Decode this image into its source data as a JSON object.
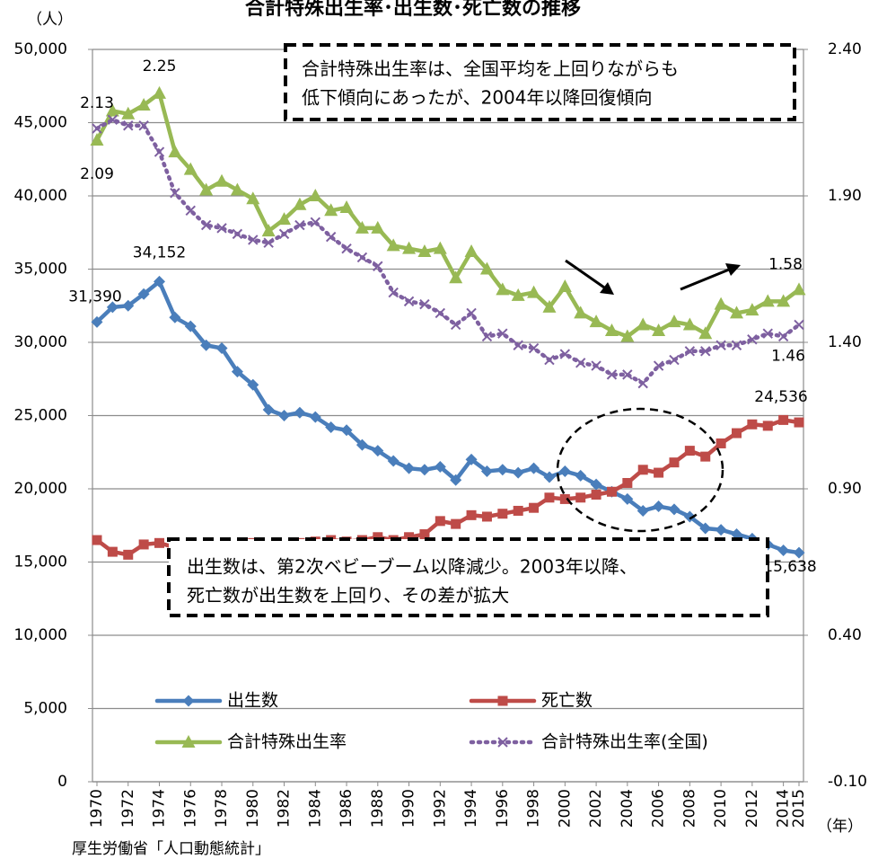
{
  "chart_data": {
    "type": "line",
    "title": "合計特殊出生率･出生数･死亡数の推移",
    "y_axis_label": "（人）",
    "x_axis_label": "（年）",
    "source": "厚生労働省「人口動態統計」",
    "x": [
      1970,
      1971,
      1972,
      1973,
      1974,
      1975,
      1976,
      1977,
      1978,
      1979,
      1980,
      1981,
      1982,
      1983,
      1984,
      1985,
      1986,
      1987,
      1988,
      1989,
      1990,
      1991,
      1992,
      1993,
      1994,
      1995,
      1996,
      1997,
      1998,
      1999,
      2000,
      2001,
      2002,
      2003,
      2004,
      2005,
      2006,
      2007,
      2008,
      2009,
      2010,
      2011,
      2012,
      2013,
      2014,
      2015
    ],
    "xlim": [
      1970,
      2015
    ],
    "xticks": [
      1970,
      1972,
      1974,
      1976,
      1978,
      1980,
      1982,
      1984,
      1986,
      1988,
      1990,
      1992,
      1994,
      1996,
      1998,
      2000,
      2002,
      2004,
      2006,
      2008,
      2010,
      2012,
      2014,
      2015
    ],
    "ylim": [
      0,
      50000
    ],
    "yticks": [
      0,
      {
        "value": 5000,
        "label": "5,000"
      },
      {
        "value": 10000,
        "label": "10,000"
      },
      {
        "value": 15000,
        "label": "15,000"
      },
      {
        "value": 20000,
        "label": "20,000"
      },
      {
        "value": 25000,
        "label": "25,000"
      },
      {
        "value": 30000,
        "label": "30,000"
      },
      {
        "value": 35000,
        "label": "35,000"
      },
      {
        "value": 40000,
        "label": "40,000"
      },
      {
        "value": 45000,
        "label": "45,000"
      },
      {
        "value": 50000,
        "label": "50,000"
      }
    ],
    "y2lim": [
      -0.1,
      2.4
    ],
    "y2ticks": [
      {
        "value": -0.1,
        "label": "-0.10"
      },
      {
        "value": 0.4,
        "label": "0.40"
      },
      {
        "value": 0.9,
        "label": "0.90"
      },
      {
        "value": 1.4,
        "label": "1.40"
      },
      {
        "value": 1.9,
        "label": "1.90"
      },
      {
        "value": 2.4,
        "label": "2.40"
      }
    ],
    "grid": true,
    "series": [
      {
        "name": "出生数",
        "color": "#4a7ebb",
        "marker": "diamond",
        "values": [
          31390,
          32400,
          32500,
          33300,
          34152,
          31700,
          31100,
          29800,
          29600,
          28000,
          27100,
          25400,
          25000,
          25200,
          24900,
          24200,
          24000,
          23000,
          22600,
          21900,
          21400,
          21300,
          21500,
          20600,
          22000,
          21200,
          21300,
          21100,
          21400,
          20800,
          21200,
          20900,
          20300,
          19800,
          19300,
          18500,
          18800,
          18600,
          18100,
          17300,
          17200,
          16900,
          16600,
          16200,
          15800,
          15638
        ],
        "value_labels": [
          "31,390",
          null,
          null,
          null,
          "34,152",
          null,
          null,
          null,
          null,
          null,
          null,
          null,
          null,
          null,
          null,
          null,
          null,
          null,
          null,
          null,
          null,
          null,
          null,
          null,
          null,
          null,
          null,
          null,
          null,
          null,
          null,
          null,
          null,
          null,
          null,
          null,
          null,
          null,
          null,
          null,
          null,
          null,
          null,
          null,
          null,
          "15,638"
        ]
      },
      {
        "name": "死亡数",
        "color": "#be4b48",
        "marker": "square",
        "values": [
          16500,
          15700,
          15500,
          16200,
          16300,
          16000,
          16100,
          15900,
          16000,
          16100,
          16300,
          16200,
          16100,
          16300,
          16400,
          16500,
          16400,
          16500,
          16700,
          16500,
          16700,
          16900,
          17800,
          17600,
          18200,
          18100,
          18300,
          18500,
          18700,
          19400,
          19300,
          19400,
          19600,
          19800,
          20400,
          21300,
          21100,
          21800,
          22600,
          22200,
          23100,
          23800,
          24400,
          24300,
          24700,
          24536
        ],
        "value_labels": [
          null,
          null,
          null,
          null,
          null,
          null,
          null,
          null,
          null,
          null,
          null,
          null,
          null,
          null,
          null,
          null,
          null,
          null,
          null,
          null,
          null,
          null,
          null,
          null,
          null,
          null,
          null,
          null,
          null,
          null,
          null,
          null,
          null,
          null,
          null,
          null,
          null,
          null,
          null,
          null,
          null,
          null,
          null,
          null,
          null,
          "24,536"
        ]
      },
      {
        "name": "合計特殊出生率",
        "color": "#98b954",
        "marker": "triangle",
        "axis": "y2",
        "values": [
          2.09,
          2.19,
          2.18,
          2.21,
          2.25,
          2.05,
          1.99,
          1.92,
          1.95,
          1.92,
          1.89,
          1.78,
          1.82,
          1.87,
          1.9,
          1.85,
          1.86,
          1.79,
          1.79,
          1.73,
          1.72,
          1.71,
          1.72,
          1.62,
          1.71,
          1.65,
          1.58,
          1.56,
          1.57,
          1.52,
          1.59,
          1.5,
          1.47,
          1.44,
          1.42,
          1.46,
          1.44,
          1.47,
          1.46,
          1.43,
          1.53,
          1.5,
          1.51,
          1.54,
          1.54,
          1.58
        ],
        "value_labels": [
          "2.09",
          null,
          null,
          null,
          "2.25",
          null,
          null,
          null,
          null,
          null,
          null,
          null,
          null,
          null,
          null,
          null,
          null,
          null,
          null,
          null,
          null,
          null,
          null,
          null,
          null,
          null,
          null,
          null,
          null,
          null,
          null,
          null,
          null,
          null,
          null,
          null,
          null,
          null,
          null,
          null,
          null,
          null,
          null,
          null,
          null,
          "1.58"
        ]
      },
      {
        "name": "合計特殊出生率(全国)",
        "color": "#7e60a0",
        "marker": "x",
        "dash": "dotted",
        "axis": "y2",
        "values": [
          2.13,
          2.16,
          2.14,
          2.14,
          2.05,
          1.91,
          1.85,
          1.8,
          1.79,
          1.77,
          1.75,
          1.74,
          1.77,
          1.8,
          1.81,
          1.76,
          1.72,
          1.69,
          1.66,
          1.57,
          1.54,
          1.53,
          1.5,
          1.46,
          1.5,
          1.42,
          1.43,
          1.39,
          1.38,
          1.34,
          1.36,
          1.33,
          1.32,
          1.29,
          1.29,
          1.26,
          1.32,
          1.34,
          1.37,
          1.37,
          1.39,
          1.39,
          1.41,
          1.43,
          1.42,
          1.46
        ],
        "value_labels": [
          "2.13",
          null,
          null,
          null,
          null,
          null,
          null,
          null,
          null,
          null,
          null,
          null,
          null,
          null,
          null,
          null,
          null,
          null,
          null,
          null,
          null,
          null,
          null,
          null,
          null,
          null,
          null,
          null,
          null,
          null,
          null,
          null,
          null,
          null,
          null,
          null,
          null,
          null,
          null,
          null,
          null,
          null,
          null,
          null,
          null,
          "1.46"
        ]
      }
    ],
    "annotations": [
      {
        "lines": [
          "合計特殊出生率は、全国平均を上回りながらも",
          "低下傾向にあったが、2004年以降回復傾向"
        ]
      },
      {
        "lines": [
          "出生数は、第2次ベビーブーム以降減少。2003年以降、",
          "死亡数が出生数を上回り、その差が拡大"
        ]
      }
    ]
  }
}
